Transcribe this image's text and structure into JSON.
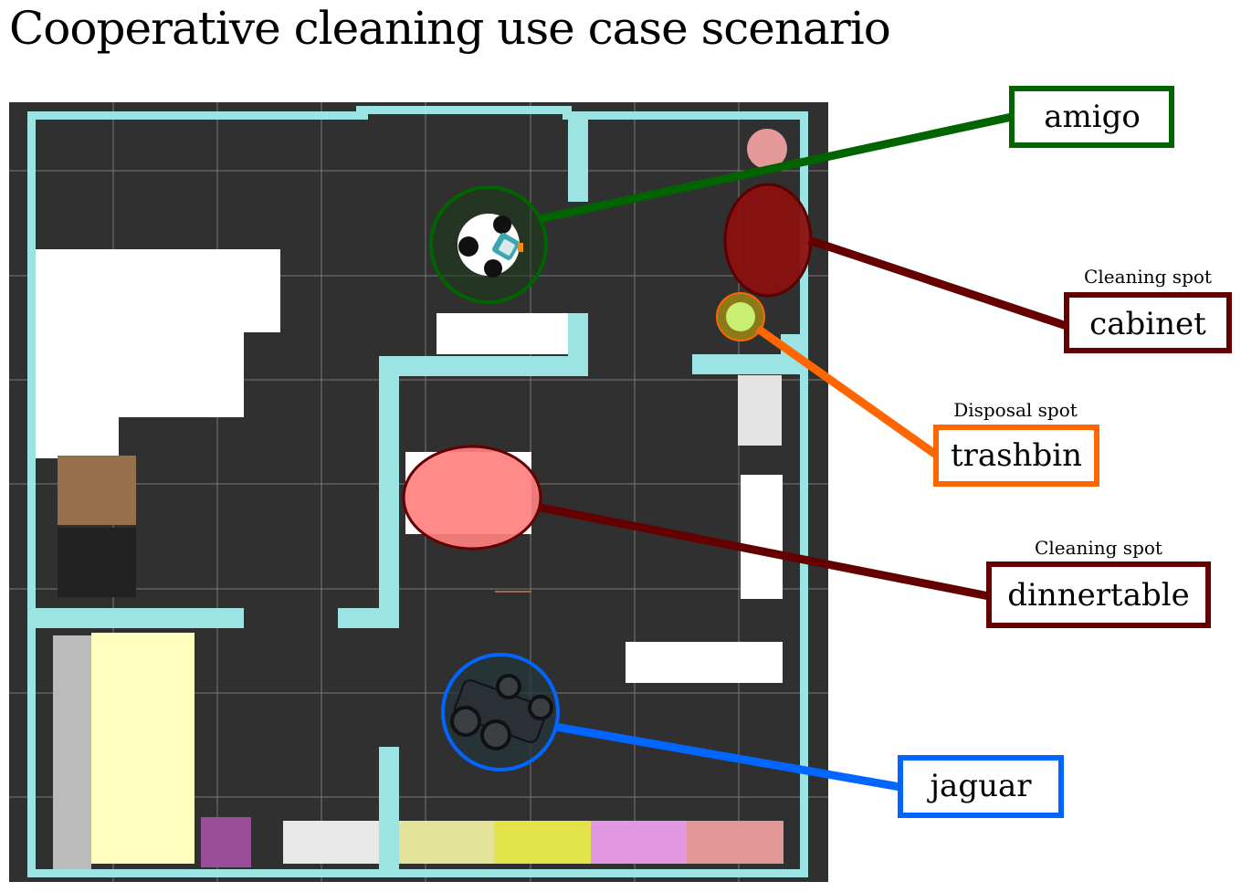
{
  "title": "Cooperative cleaning use case scenario",
  "colors": {
    "floor": "#303030",
    "wall": "#9ce4e4",
    "amigo": "#006400",
    "cabinet": "#640000",
    "trashbin": "#ff6600",
    "dinnertable": "#640000",
    "jaguar": "#0066ff"
  },
  "callouts": {
    "amigo": {
      "label": "amigo",
      "subtitle": ""
    },
    "cabinet": {
      "label": "cabinet",
      "subtitle": "Cleaning spot"
    },
    "trashbin": {
      "label": "trashbin",
      "subtitle": "Disposal spot"
    },
    "dinnertable": {
      "label": "dinnertable",
      "subtitle": "Cleaning spot"
    },
    "jaguar": {
      "label": "jaguar",
      "subtitle": ""
    }
  }
}
